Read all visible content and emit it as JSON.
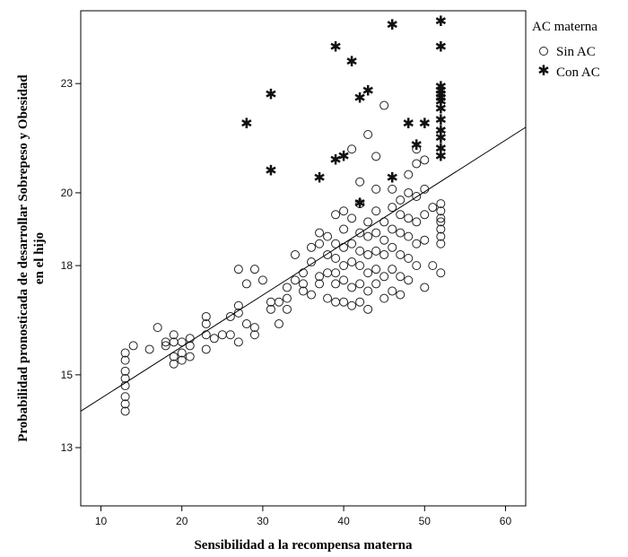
{
  "chart_data": {
    "type": "scatter",
    "title": "",
    "xlabel": "Sensibilidad a la recompensa materna",
    "ylabel_line1": "Probabilidad pronosticada de desarrollar Sobrepeso y Obesidad",
    "ylabel_line2": "en el hijo",
    "xlim": [
      7.5,
      62.5
    ],
    "ylim": [
      11.4,
      25.0
    ],
    "xticks": [
      10,
      20,
      30,
      40,
      50,
      60
    ],
    "yticks": [
      13,
      15,
      18,
      20,
      23
    ],
    "x_tick_labels": [
      "10",
      "20",
      "30",
      "40",
      "50",
      "60"
    ],
    "y_tick_labels": [
      "13",
      "15",
      "18",
      "20",
      "23"
    ],
    "legend": {
      "title": "AC materna",
      "entries": [
        {
          "label": "Sin AC",
          "marker": "circle"
        },
        {
          "label": "Con AC",
          "marker": "star"
        }
      ]
    },
    "fit_line": {
      "x": [
        7.5,
        62.5
      ],
      "y": [
        14.0,
        21.8
      ]
    },
    "series": [
      {
        "name": "Sin AC",
        "marker": "circle",
        "points": [
          [
            13,
            14.0
          ],
          [
            13,
            14.2
          ],
          [
            13,
            14.4
          ],
          [
            13,
            14.7
          ],
          [
            13,
            14.9
          ],
          [
            13,
            15.1
          ],
          [
            13,
            15.4
          ],
          [
            13,
            15.6
          ],
          [
            14,
            15.8
          ],
          [
            16,
            15.7
          ],
          [
            17,
            16.3
          ],
          [
            18,
            15.9
          ],
          [
            18,
            15.8
          ],
          [
            19,
            15.3
          ],
          [
            19,
            15.5
          ],
          [
            19,
            15.9
          ],
          [
            19,
            16.1
          ],
          [
            20,
            15.9
          ],
          [
            20,
            15.6
          ],
          [
            20,
            15.4
          ],
          [
            21,
            15.5
          ],
          [
            21,
            15.8
          ],
          [
            21,
            16.0
          ],
          [
            23,
            15.7
          ],
          [
            23,
            16.1
          ],
          [
            23,
            16.4
          ],
          [
            23,
            16.6
          ],
          [
            24,
            16.0
          ],
          [
            25,
            16.1
          ],
          [
            26,
            16.1
          ],
          [
            26,
            16.6
          ],
          [
            27,
            16.9
          ],
          [
            27,
            16.7
          ],
          [
            27,
            15.9
          ],
          [
            27,
            17.9
          ],
          [
            28,
            16.4
          ],
          [
            28,
            17.5
          ],
          [
            29,
            17.9
          ],
          [
            29,
            16.1
          ],
          [
            29,
            16.3
          ],
          [
            30,
            17.6
          ],
          [
            31,
            16.8
          ],
          [
            31,
            17.0
          ],
          [
            32,
            16.4
          ],
          [
            32,
            17.0
          ],
          [
            33,
            17.1
          ],
          [
            33,
            16.8
          ],
          [
            33,
            17.4
          ],
          [
            34,
            17.6
          ],
          [
            34,
            18.3
          ],
          [
            35,
            17.3
          ],
          [
            35,
            17.5
          ],
          [
            35,
            17.8
          ],
          [
            36,
            17.2
          ],
          [
            36,
            18.1
          ],
          [
            36,
            18.5
          ],
          [
            37,
            17.5
          ],
          [
            37,
            17.7
          ],
          [
            37,
            18.6
          ],
          [
            37,
            18.9
          ],
          [
            38,
            17.1
          ],
          [
            38,
            17.8
          ],
          [
            38,
            18.3
          ],
          [
            38,
            18.8
          ],
          [
            39,
            17.0
          ],
          [
            39,
            17.5
          ],
          [
            39,
            17.8
          ],
          [
            39,
            18.2
          ],
          [
            39,
            18.6
          ],
          [
            39,
            19.4
          ],
          [
            40,
            17.0
          ],
          [
            40,
            17.6
          ],
          [
            40,
            18.0
          ],
          [
            40,
            18.5
          ],
          [
            40,
            19.0
          ],
          [
            40,
            19.5
          ],
          [
            41,
            16.9
          ],
          [
            41,
            17.4
          ],
          [
            41,
            18.1
          ],
          [
            41,
            18.6
          ],
          [
            41,
            19.3
          ],
          [
            41,
            21.2
          ],
          [
            42,
            17.0
          ],
          [
            42,
            17.5
          ],
          [
            42,
            18.0
          ],
          [
            42,
            18.4
          ],
          [
            42,
            18.9
          ],
          [
            42,
            19.7
          ],
          [
            42,
            20.3
          ],
          [
            43,
            16.8
          ],
          [
            43,
            17.3
          ],
          [
            43,
            17.8
          ],
          [
            43,
            18.3
          ],
          [
            43,
            18.8
          ],
          [
            43,
            19.2
          ],
          [
            43,
            21.6
          ],
          [
            44,
            17.5
          ],
          [
            44,
            17.9
          ],
          [
            44,
            18.4
          ],
          [
            44,
            18.9
          ],
          [
            44,
            19.5
          ],
          [
            44,
            20.1
          ],
          [
            44,
            21.0
          ],
          [
            45,
            17.1
          ],
          [
            45,
            17.7
          ],
          [
            45,
            18.3
          ],
          [
            45,
            18.7
          ],
          [
            45,
            19.2
          ],
          [
            45,
            22.4
          ],
          [
            46,
            17.3
          ],
          [
            46,
            17.9
          ],
          [
            46,
            18.5
          ],
          [
            46,
            19.0
          ],
          [
            46,
            19.6
          ],
          [
            46,
            20.1
          ],
          [
            47,
            17.2
          ],
          [
            47,
            17.7
          ],
          [
            47,
            18.3
          ],
          [
            47,
            18.9
          ],
          [
            47,
            19.4
          ],
          [
            47,
            19.8
          ],
          [
            48,
            17.6
          ],
          [
            48,
            18.2
          ],
          [
            48,
            18.8
          ],
          [
            48,
            19.3
          ],
          [
            48,
            20.0
          ],
          [
            48,
            20.5
          ],
          [
            49,
            18.0
          ],
          [
            49,
            18.6
          ],
          [
            49,
            19.2
          ],
          [
            49,
            19.9
          ],
          [
            49,
            20.8
          ],
          [
            49,
            21.2
          ],
          [
            50,
            17.4
          ],
          [
            50,
            18.7
          ],
          [
            50,
            19.4
          ],
          [
            50,
            20.1
          ],
          [
            50,
            20.9
          ],
          [
            51,
            18.0
          ],
          [
            51,
            19.6
          ],
          [
            52,
            17.8
          ],
          [
            52,
            18.6
          ],
          [
            52,
            18.8
          ],
          [
            52,
            19.0
          ],
          [
            52,
            19.2
          ],
          [
            52,
            19.3
          ],
          [
            52,
            19.5
          ],
          [
            52,
            19.7
          ]
        ]
      },
      {
        "name": "Con AC",
        "marker": "star",
        "points": [
          [
            28,
            21.9
          ],
          [
            31,
            20.6
          ],
          [
            31,
            22.7
          ],
          [
            37,
            20.4
          ],
          [
            39,
            20.9
          ],
          [
            39,
            24.0
          ],
          [
            40,
            21.0
          ],
          [
            41,
            23.6
          ],
          [
            42,
            19.7
          ],
          [
            42,
            22.6
          ],
          [
            43,
            22.8
          ],
          [
            46,
            20.4
          ],
          [
            46,
            24.6
          ],
          [
            48,
            21.9
          ],
          [
            49,
            21.3
          ],
          [
            50,
            21.9
          ],
          [
            52,
            21.0
          ],
          [
            52,
            21.2
          ],
          [
            52,
            21.5
          ],
          [
            52,
            21.7
          ],
          [
            52,
            22.0
          ],
          [
            52,
            22.3
          ],
          [
            52,
            22.5
          ],
          [
            52,
            22.6
          ],
          [
            52,
            22.7
          ],
          [
            52,
            22.8
          ],
          [
            52,
            22.9
          ],
          [
            52,
            24.0
          ],
          [
            52,
            24.7
          ]
        ]
      }
    ]
  }
}
